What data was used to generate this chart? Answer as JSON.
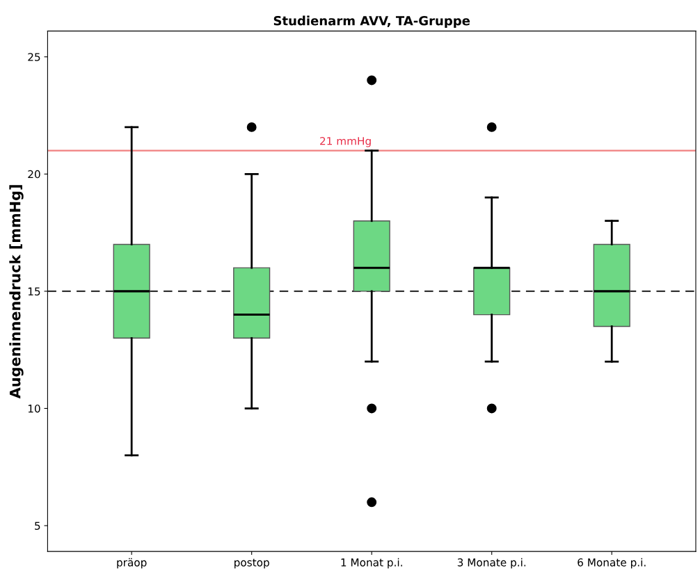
{
  "chart_data": {
    "type": "box",
    "title": "Studienarm AVV, TA-Gruppe",
    "ylabel": "Augeninnendruck [mmHg]",
    "categories": [
      "präop",
      "postop",
      "1 Monat p.i.",
      "3 Monate p.i.",
      "6 Monate p.i."
    ],
    "series": [
      {
        "color": "#6dd884",
        "boxes": [
          {
            "low": 8,
            "q1": 13,
            "median": 15,
            "q3": 17,
            "high": 22
          },
          {
            "low": 10,
            "q1": 13,
            "median": 14,
            "q3": 16,
            "high": 20,
            "outliers": [
              22
            ]
          },
          {
            "low": 12,
            "q1": 15,
            "median": 16,
            "q3": 18,
            "high": 21,
            "outliers": [
              24,
              10,
              6
            ]
          },
          {
            "low": 12,
            "q1": 14,
            "median": 16,
            "q3": 16,
            "high": 19,
            "outliers": [
              22,
              10
            ]
          },
          {
            "low": 12,
            "q1": 13.5,
            "median": 15,
            "q3": 17,
            "high": 18
          }
        ]
      }
    ],
    "ylim": [
      3.9,
      26.1
    ],
    "yticks": [
      5,
      10,
      15,
      20,
      25
    ],
    "ref_lines": [
      {
        "axis": "y",
        "value": 21,
        "label": "21 mmHg",
        "color": "#f08080",
        "line_style": "solid"
      },
      {
        "axis": "y",
        "value": 15,
        "label": null,
        "color": "#333333",
        "line_style": "dashed"
      }
    ],
    "grid": false,
    "legend": false
  }
}
